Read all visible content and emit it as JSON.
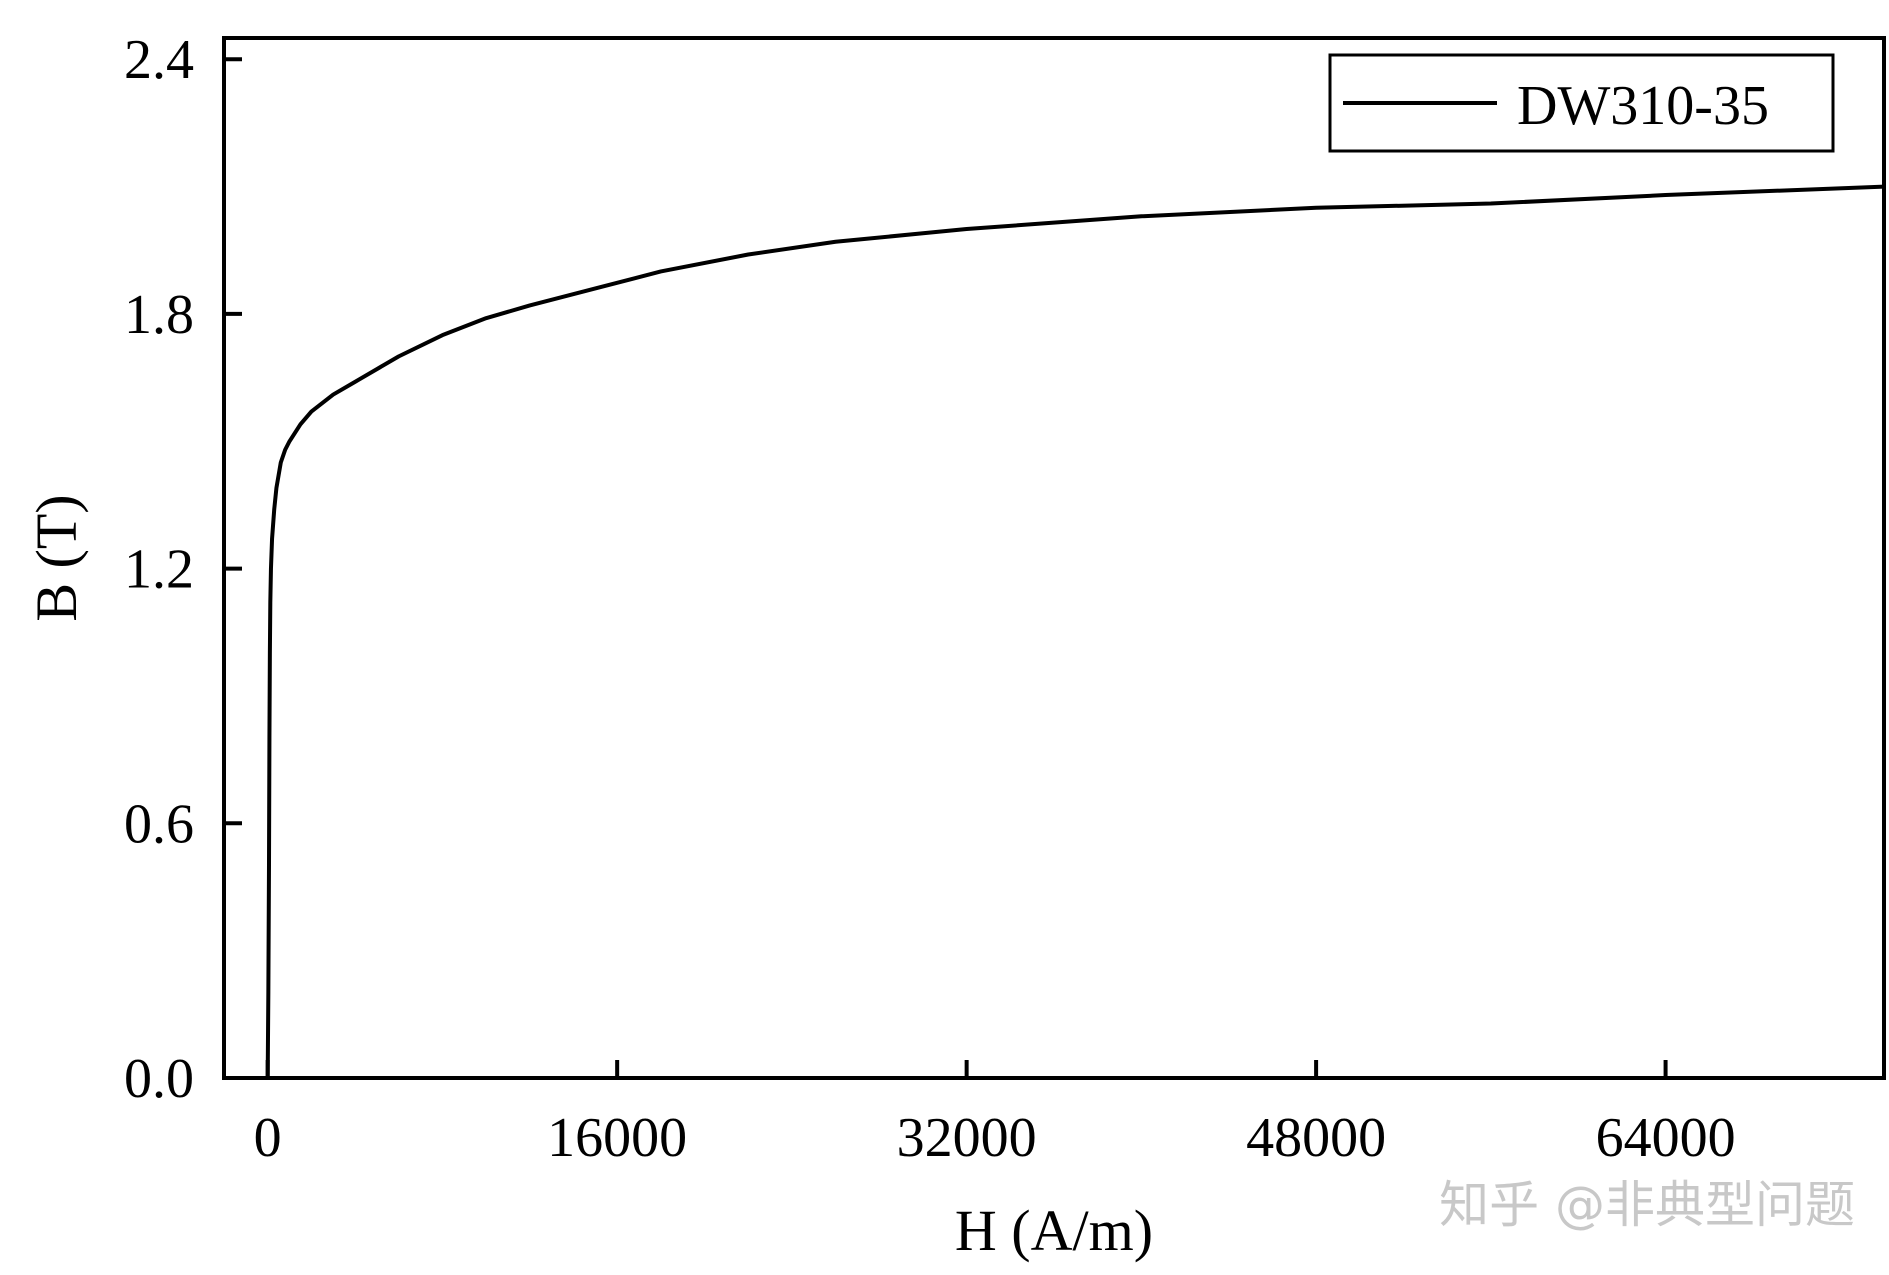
{
  "chart_data": {
    "type": "line",
    "xlabel": "H (A/m)",
    "ylabel": "B (T)",
    "xlim": [
      -2000,
      74000
    ],
    "ylim": [
      0,
      2.45
    ],
    "xticks": [
      0,
      16000,
      32000,
      48000,
      64000
    ],
    "yticks": [
      0.0,
      0.6,
      1.2,
      1.8,
      2.4
    ],
    "xtick_labels": [
      "0",
      "16000",
      "32000",
      "48000",
      "64000"
    ],
    "ytick_labels": [
      "0.0",
      "0.6",
      "1.2",
      "1.8",
      "2.4"
    ],
    "grid": false,
    "legend_position": "top-right",
    "series": [
      {
        "name": "DW310-35",
        "color": "#000000",
        "x": [
          0,
          30,
          60,
          80,
          100,
          120,
          150,
          200,
          300,
          400,
          600,
          800,
          1000,
          1500,
          2000,
          3000,
          4000,
          5000,
          6000,
          8000,
          10000,
          12000,
          15000,
          18000,
          22000,
          26000,
          30000,
          32000,
          40000,
          48000,
          56000,
          64000,
          74000
        ],
        "y": [
          0.0,
          0.2,
          0.5,
          0.8,
          1.0,
          1.12,
          1.2,
          1.27,
          1.34,
          1.39,
          1.45,
          1.48,
          1.5,
          1.54,
          1.57,
          1.61,
          1.64,
          1.67,
          1.7,
          1.75,
          1.79,
          1.82,
          1.86,
          1.9,
          1.94,
          1.97,
          1.99,
          2.0,
          2.03,
          2.05,
          2.06,
          2.08,
          2.1
        ]
      }
    ]
  },
  "watermark": {
    "text": "知乎 @非典型问题"
  }
}
